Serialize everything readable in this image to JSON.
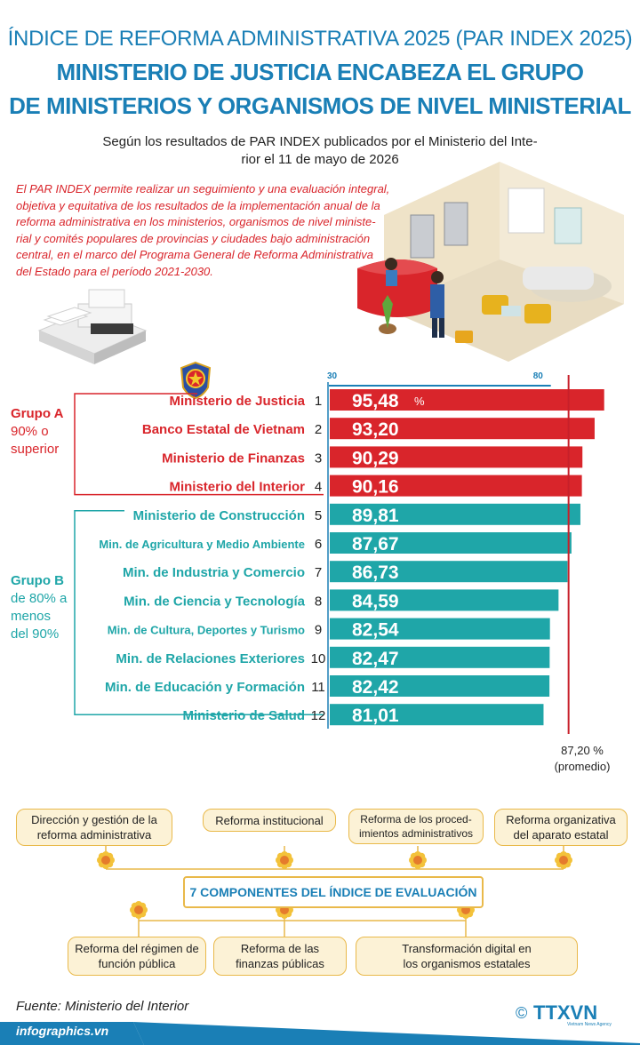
{
  "header": {
    "kicker": "ÍNDICE DE REFORMA ADMINISTRATIVA 2025 (PAR INDEX 2025)",
    "title_line1": "MINISTERIO DE JUSTICIA ENCABEZA EL GRUPO",
    "title_line2": "DE MINISTERIOS Y ORGANISMOS DE NIVEL MINISTERIAL",
    "source_line1": "Según los resultados de PAR INDEX publicados por el Ministerio del Inte-",
    "source_line2": "rior el 11 de mayo de 2026"
  },
  "intro": [
    "El PAR INDEX permite realizar un seguimiento y una evaluación integral,",
    "objetiva y equitativa de los resultados de la implementación anual de la",
    "reforma administrativa en los ministerios, organismos de nivel ministe-",
    "rial y comités populares de provincias y ciudades bajo administración",
    "central, en el marco del Programa General de Reforma Administrativa",
    "del Estado para el período 2021-2030."
  ],
  "groups": {
    "a_title": "Grupo A",
    "a_desc1": "90% o",
    "a_desc2": "superior",
    "b_title": "Grupo B",
    "b_desc1": "de 80% a",
    "b_desc2": "menos",
    "b_desc3": "del 90%"
  },
  "colors": {
    "group_a": "#d9252b",
    "group_b": "#1fa6a8",
    "title_blue": "#1a7fb6",
    "component_border": "#e9b94a",
    "component_fill": "#fcf2d6",
    "average_line": "#c8202a"
  },
  "chart_data": {
    "type": "bar",
    "orientation": "horizontal",
    "axis_ticks": [
      "30",
      "80"
    ],
    "xlim": [
      30,
      100
    ],
    "unit": "%",
    "average": {
      "value": 87.2,
      "label": "87,20 %",
      "note": "(promedio)"
    },
    "rows": [
      {
        "rank": "1",
        "name": "Ministerio de Justicia",
        "value": 95.48,
        "label": "95,48",
        "group": "A"
      },
      {
        "rank": "2",
        "name": "Banco Estatal de Vietnam",
        "value": 93.2,
        "label": "93,20",
        "group": "A"
      },
      {
        "rank": "3",
        "name": "Ministerio de Finanzas",
        "value": 90.29,
        "label": "90,29",
        "group": "A"
      },
      {
        "rank": "4",
        "name": "Ministerio del Interior",
        "value": 90.16,
        "label": "90,16",
        "group": "A"
      },
      {
        "rank": "5",
        "name": "Ministerio de Construcción",
        "value": 89.81,
        "label": "89,81",
        "group": "B"
      },
      {
        "rank": "6",
        "name": "Min. de Agricultura y Medio Ambiente",
        "value": 87.67,
        "label": "87,67",
        "group": "B"
      },
      {
        "rank": "7",
        "name": "Min. de Industria y Comercio",
        "value": 86.73,
        "label": "86,73",
        "group": "B"
      },
      {
        "rank": "8",
        "name": "Min. de Ciencia y Tecnología",
        "value": 84.59,
        "label": "84,59",
        "group": "B"
      },
      {
        "rank": "9",
        "name": "Min. de Cultura, Deportes y Turismo",
        "value": 82.54,
        "label": "82,54",
        "group": "B"
      },
      {
        "rank": "10",
        "name": "Min. de Relaciones Exteriores",
        "value": 82.47,
        "label": "82,47",
        "group": "B"
      },
      {
        "rank": "11",
        "name": "Min. de Educación y Formación",
        "value": 82.42,
        "label": "82,42",
        "group": "B"
      },
      {
        "rank": "12",
        "name": "Ministerio de Salud",
        "value": 81.01,
        "label": "81,01",
        "group": "B"
      }
    ]
  },
  "components": {
    "center_title": "7 COMPONENTES DEL ÍNDICE DE EVALUACIÓN",
    "c1_line1": "Dirección y gestión de la",
    "c1_line2": "reforma administrativa",
    "c2_line1": "Reforma institucional",
    "c3_line1": "Reforma de los proced-",
    "c3_line2": "imientos administrativos",
    "c4_line1": "Reforma organizativa",
    "c4_line2": "del aparato estatal",
    "c5_line1": "Reforma del régimen de",
    "c5_line2": "función pública",
    "c6_line1": "Reforma de las",
    "c6_line2": "finanzas públicas",
    "c7_line1": "Transformación digital en",
    "c7_line2": "los organismos estatales"
  },
  "footer": {
    "source": "Fuente: Ministerio del Interior",
    "site": "infographics.vn",
    "logo_text": "TTXVN",
    "logo_sub": "Vietnam News Agency",
    "copyright": "©"
  }
}
